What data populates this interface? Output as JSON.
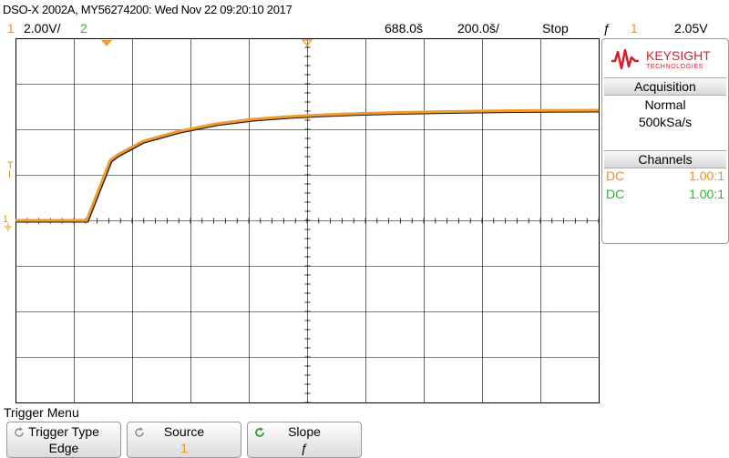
{
  "header": {
    "title": "DSO-X 2002A, MY56274200: Wed Nov 22 09:20:10 2017",
    "ch1_num": "1",
    "ch1_scale": "2.00V/",
    "ch2_num": "2",
    "horiz_pos": "688.0š",
    "horiz_scale": "200.0š/",
    "run_state": "Stop",
    "trigger_icon": "ƒ",
    "trigger_source": "1",
    "trigger_level": "2.05V"
  },
  "colors": {
    "ch1": "#e8941a",
    "ch2": "#2fb52f",
    "trigger_marker": "#f2a23a"
  },
  "logo": {
    "brand": "KEYSIGHT",
    "sub": "TECHNOLOGIES"
  },
  "acquisition": {
    "header": "Acquisition",
    "mode": "Normal",
    "rate": "500kSa/s"
  },
  "channels": {
    "header": "Channels",
    "items": [
      {
        "coupling": "DC",
        "probe": "1.00:1"
      },
      {
        "coupling": "DC",
        "probe": "1.00:1"
      }
    ]
  },
  "markers": {
    "trigger_level_label": "T",
    "ground_label": "1"
  },
  "menu": {
    "title": "Trigger Menu",
    "softkeys": [
      {
        "label": "Trigger Type",
        "value": "Edge"
      },
      {
        "label": "Source",
        "value": "1"
      },
      {
        "label": "Slope",
        "value": "ƒ"
      }
    ]
  }
}
